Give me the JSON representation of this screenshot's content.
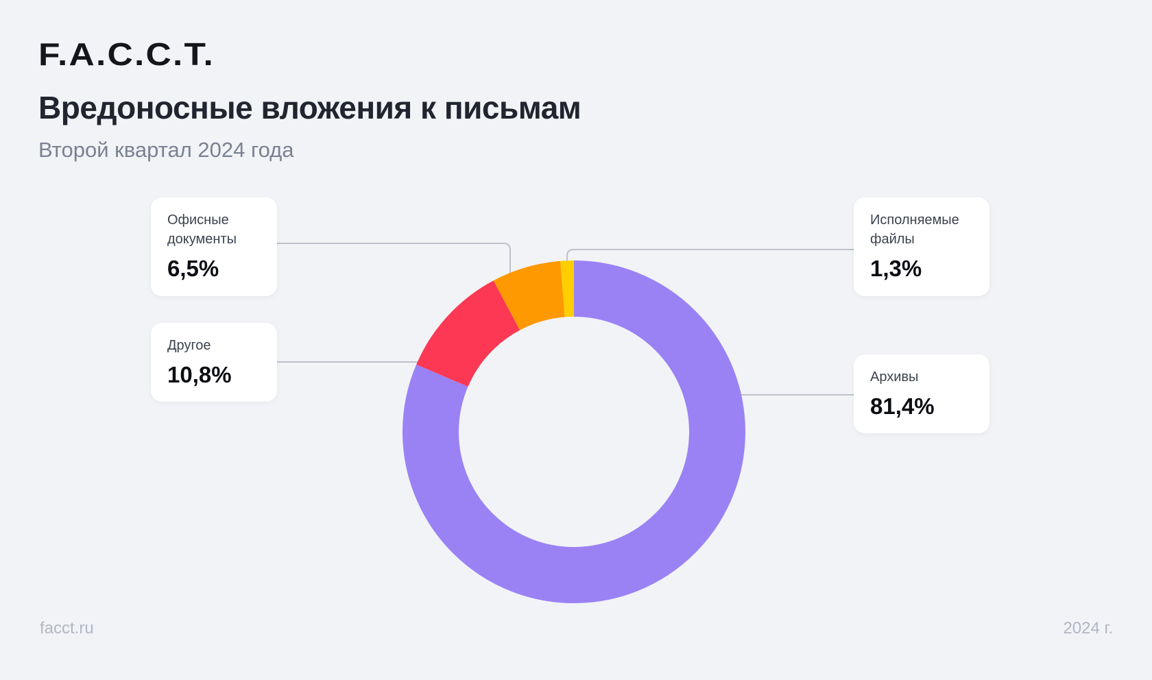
{
  "brand": {
    "logo_text": "F.A.C.C.T."
  },
  "header": {
    "title": "Вредоносные вложения к письмам",
    "subtitle": "Второй квартал 2024 года"
  },
  "chart_data": {
    "type": "pie",
    "donut": true,
    "title": "Вредоносные вложения к письмам",
    "subtitle": "Второй квартал 2024 года",
    "unit": "%",
    "start_angle_deg": 0,
    "direction": "clockwise",
    "legend_position": "callout-cards",
    "segments": [
      {
        "label": "Архивы",
        "value": 81.4,
        "display_value": "81,4%",
        "color": "#9a82f5"
      },
      {
        "label": "Другое",
        "value": 10.8,
        "display_value": "10,8%",
        "color": "#fc3854"
      },
      {
        "label": "Офисные документы",
        "value": 6.5,
        "display_value": "6,5%",
        "color": "#fe9902"
      },
      {
        "label": "Исполняемые файлы",
        "value": 1.3,
        "display_value": "1,3%",
        "color": "#ffcd00"
      }
    ]
  },
  "callouts": {
    "office": {
      "label": "Офисные документы",
      "value": "6,5%"
    },
    "other": {
      "label": "Другое",
      "value": "10,8%"
    },
    "exec": {
      "label": "Исполняемые файлы",
      "value": "1,3%"
    },
    "archives": {
      "label": "Архивы",
      "value": "81,4%"
    }
  },
  "footer": {
    "site": "facct.ru",
    "year": "2024 г."
  },
  "colors": {
    "background": "#f2f3f7",
    "card": "#ffffff",
    "connector": "#bdc1cb",
    "title": "#21252f",
    "subtitle": "#7b8190",
    "footer": "#b2b6c1"
  }
}
